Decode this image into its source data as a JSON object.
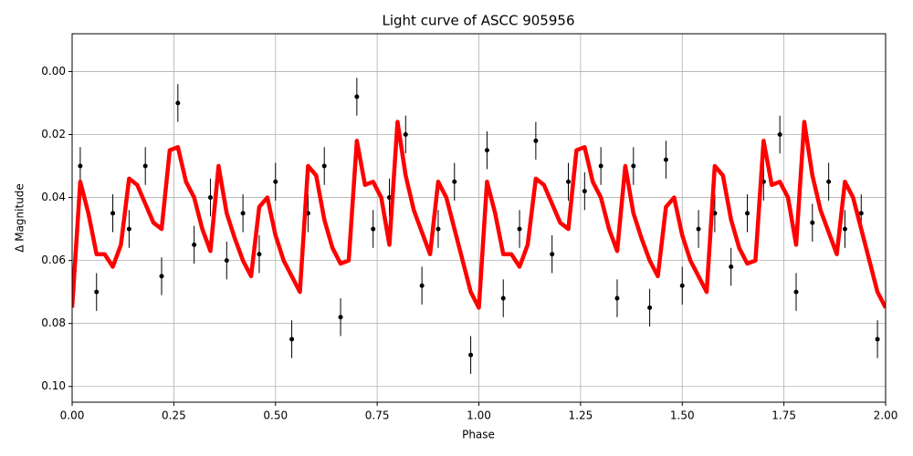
{
  "chart_data": {
    "type": "scatter_model",
    "title": "Light curve of ASCC 905956",
    "xlabel": "Phase",
    "ylabel": "Δ Magnitude",
    "xlim": [
      0,
      2
    ],
    "ylim": [
      -0.012,
      0.105
    ],
    "y_inverted": true,
    "grid": true,
    "xticks": [
      {
        "value": 0,
        "label": "0.00"
      },
      {
        "value": 0.25,
        "label": "0.25"
      },
      {
        "value": 0.5,
        "label": "0.50"
      },
      {
        "value": 0.75,
        "label": "0.75"
      },
      {
        "value": 1,
        "label": "1.00"
      },
      {
        "value": 1.25,
        "label": "1.25"
      },
      {
        "value": 1.5,
        "label": "1.50"
      },
      {
        "value": 1.75,
        "label": "1.75"
      },
      {
        "value": 2,
        "label": "2.00"
      }
    ],
    "yticks": [
      {
        "value": 0,
        "label": "0.00"
      },
      {
        "value": 0.02,
        "label": "0.02"
      },
      {
        "value": 0.04,
        "label": "0.04"
      },
      {
        "value": 0.06,
        "label": "0.06"
      },
      {
        "value": 0.08,
        "label": "0.08"
      },
      {
        "value": 0.1,
        "label": "0.10"
      }
    ],
    "observations": {
      "color": "#000000",
      "x": [
        0.02,
        0.06,
        0.1,
        0.14,
        0.18,
        0.22,
        0.26,
        0.3,
        0.34,
        0.38,
        0.42,
        0.46,
        0.5,
        0.54,
        0.58,
        0.62,
        0.66,
        0.7,
        0.74,
        0.78,
        0.82,
        0.86,
        0.9,
        0.94,
        0.98,
        1.02,
        1.06,
        1.1,
        1.14,
        1.18,
        1.22,
        1.26,
        1.3,
        1.34,
        1.38,
        1.42,
        1.46,
        1.5,
        1.54,
        1.58,
        1.62,
        1.66,
        1.7,
        1.74,
        1.78,
        1.82,
        1.86,
        1.9,
        1.94,
        1.98
      ],
      "values": [
        0.03,
        0.07,
        0.045,
        0.05,
        0.03,
        0.065,
        0.01,
        0.055,
        0.04,
        0.06,
        0.045,
        0.058,
        0.035,
        0.085,
        0.045,
        0.03,
        0.078,
        0.008,
        0.05,
        0.04,
        0.02,
        0.068,
        0.05,
        0.035,
        0.09,
        0.025,
        0.072,
        0.05,
        0.022,
        0.058,
        0.035,
        0.038,
        0.03,
        0.072,
        0.03,
        0.075,
        0.028,
        0.068,
        0.05,
        0.045,
        0.062,
        0.045,
        0.035,
        0.02,
        0.07,
        0.048,
        0.035,
        0.05,
        0.045,
        0.085
      ],
      "errors": [
        0.006,
        0.006,
        0.006,
        0.006,
        0.006,
        0.006,
        0.006,
        0.006,
        0.006,
        0.006,
        0.006,
        0.006,
        0.006,
        0.006,
        0.006,
        0.006,
        0.006,
        0.006,
        0.006,
        0.006,
        0.006,
        0.006,
        0.006,
        0.006,
        0.006,
        0.006,
        0.006,
        0.006,
        0.006,
        0.006,
        0.006,
        0.006,
        0.006,
        0.006,
        0.006,
        0.006,
        0.006,
        0.006,
        0.006,
        0.006,
        0.006,
        0.006,
        0.006,
        0.006,
        0.006,
        0.006,
        0.006,
        0.006,
        0.006,
        0.006
      ]
    },
    "model": {
      "color": "#ff0000",
      "x": [
        0,
        0.02,
        0.04,
        0.06,
        0.08,
        0.1,
        0.12,
        0.14,
        0.16,
        0.18,
        0.2,
        0.22,
        0.24,
        0.26,
        0.28,
        0.3,
        0.32,
        0.34,
        0.36,
        0.38,
        0.4,
        0.42,
        0.44,
        0.46,
        0.48,
        0.5,
        0.52,
        0.54,
        0.56,
        0.58,
        0.6,
        0.62,
        0.64,
        0.66,
        0.68,
        0.7,
        0.72,
        0.74,
        0.76,
        0.78,
        0.8,
        0.82,
        0.84,
        0.86,
        0.88,
        0.9,
        0.92,
        0.94,
        0.96,
        0.98,
        1,
        1.02,
        1.04,
        1.06,
        1.08,
        1.1,
        1.12,
        1.14,
        1.16,
        1.18,
        1.2,
        1.22,
        1.24,
        1.26,
        1.28,
        1.3,
        1.32,
        1.34,
        1.36,
        1.38,
        1.4,
        1.42,
        1.44,
        1.46,
        1.48,
        1.5,
        1.52,
        1.54,
        1.56,
        1.58,
        1.6,
        1.62,
        1.64,
        1.66,
        1.68,
        1.7,
        1.72,
        1.74,
        1.76,
        1.78,
        1.8,
        1.82,
        1.84,
        1.86,
        1.88,
        1.9,
        1.92,
        1.94,
        1.96,
        1.98,
        2
      ],
      "values": [
        0.075,
        0.035,
        0.045,
        0.058,
        0.058,
        0.062,
        0.055,
        0.034,
        0.036,
        0.042,
        0.048,
        0.05,
        0.025,
        0.024,
        0.035,
        0.04,
        0.05,
        0.057,
        0.03,
        0.045,
        0.053,
        0.06,
        0.065,
        0.043,
        0.04,
        0.052,
        0.06,
        0.065,
        0.07,
        0.03,
        0.033,
        0.047,
        0.056,
        0.061,
        0.06,
        0.022,
        0.036,
        0.035,
        0.04,
        0.055,
        0.016,
        0.033,
        0.044,
        0.051,
        0.058,
        0.035,
        0.04,
        0.05,
        0.06,
        0.07,
        0.075,
        0.035,
        0.045,
        0.058,
        0.058,
        0.062,
        0.055,
        0.034,
        0.036,
        0.042,
        0.048,
        0.05,
        0.025,
        0.024,
        0.035,
        0.04,
        0.05,
        0.057,
        0.03,
        0.045,
        0.053,
        0.06,
        0.065,
        0.043,
        0.04,
        0.052,
        0.06,
        0.065,
        0.07,
        0.03,
        0.033,
        0.047,
        0.056,
        0.061,
        0.06,
        0.022,
        0.036,
        0.035,
        0.04,
        0.055,
        0.016,
        0.033,
        0.044,
        0.051,
        0.058,
        0.035,
        0.04,
        0.05,
        0.06,
        0.07,
        0.075
      ]
    }
  }
}
